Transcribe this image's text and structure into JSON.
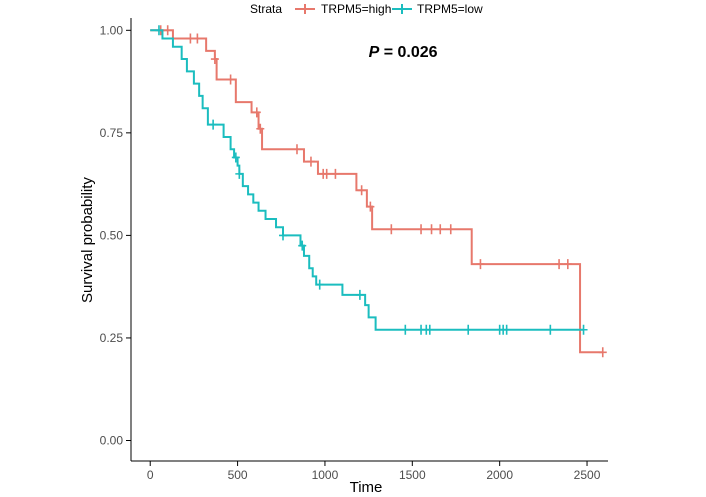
{
  "chart_data": {
    "type": "line",
    "title": "",
    "xlabel": "Time",
    "ylabel": "Survival probability",
    "xlim": [
      -110,
      2620
    ],
    "ylim": [
      -0.05,
      1.03
    ],
    "xticks": [
      0,
      500,
      1000,
      1500,
      2000,
      2500
    ],
    "yticks": [
      0.0,
      0.25,
      0.5,
      0.75,
      1.0
    ],
    "xtick_labels": [
      "0",
      "500",
      "1000",
      "1500",
      "2000",
      "2500"
    ],
    "ytick_labels": [
      "0.00",
      "0.25",
      "0.50",
      "0.75",
      "1.00"
    ],
    "grid": false,
    "legend": {
      "title": "Strata",
      "position": "top"
    },
    "annotation": {
      "text_prefix": "P",
      "text_value": " = 0.026",
      "x": 1250,
      "y": 0.935
    },
    "series": [
      {
        "name": "TRPM5=high",
        "color": "#E7786C",
        "steps": [
          [
            0,
            1.0
          ],
          [
            130,
            0.98
          ],
          [
            320,
            0.95
          ],
          [
            370,
            0.93
          ],
          [
            380,
            0.88
          ],
          [
            470,
            0.88
          ],
          [
            490,
            0.825
          ],
          [
            560,
            0.825
          ],
          [
            580,
            0.8
          ],
          [
            620,
            0.76
          ],
          [
            640,
            0.71
          ],
          [
            870,
            0.71
          ],
          [
            880,
            0.68
          ],
          [
            950,
            0.68
          ],
          [
            960,
            0.65
          ],
          [
            1170,
            0.65
          ],
          [
            1180,
            0.61
          ],
          [
            1230,
            0.61
          ],
          [
            1240,
            0.57
          ],
          [
            1260,
            0.57
          ],
          [
            1270,
            0.515
          ],
          [
            1830,
            0.515
          ],
          [
            1840,
            0.43
          ],
          [
            2450,
            0.43
          ],
          [
            2460,
            0.215
          ],
          [
            2590,
            0.215
          ]
        ],
        "censored": [
          [
            60,
            1.0
          ],
          [
            100,
            1.0
          ],
          [
            230,
            0.98
          ],
          [
            270,
            0.98
          ],
          [
            370,
            0.93
          ],
          [
            460,
            0.88
          ],
          [
            610,
            0.8
          ],
          [
            630,
            0.76
          ],
          [
            840,
            0.71
          ],
          [
            920,
            0.68
          ],
          [
            990,
            0.65
          ],
          [
            1010,
            0.65
          ],
          [
            1060,
            0.65
          ],
          [
            1210,
            0.61
          ],
          [
            1260,
            0.57
          ],
          [
            1380,
            0.515
          ],
          [
            1550,
            0.515
          ],
          [
            1610,
            0.515
          ],
          [
            1660,
            0.515
          ],
          [
            1720,
            0.515
          ],
          [
            1890,
            0.43
          ],
          [
            2340,
            0.43
          ],
          [
            2390,
            0.43
          ],
          [
            2590,
            0.215
          ]
        ]
      },
      {
        "name": "TRPM5=low",
        "color": "#1BBDBF",
        "steps": [
          [
            0,
            1.0
          ],
          [
            70,
            0.98
          ],
          [
            130,
            0.96
          ],
          [
            180,
            0.93
          ],
          [
            210,
            0.9
          ],
          [
            250,
            0.87
          ],
          [
            280,
            0.84
          ],
          [
            300,
            0.81
          ],
          [
            330,
            0.77
          ],
          [
            420,
            0.74
          ],
          [
            460,
            0.71
          ],
          [
            480,
            0.69
          ],
          [
            500,
            0.67
          ],
          [
            510,
            0.65
          ],
          [
            530,
            0.62
          ],
          [
            560,
            0.6
          ],
          [
            590,
            0.58
          ],
          [
            620,
            0.56
          ],
          [
            660,
            0.54
          ],
          [
            720,
            0.52
          ],
          [
            760,
            0.5
          ],
          [
            860,
            0.475
          ],
          [
            880,
            0.45
          ],
          [
            910,
            0.42
          ],
          [
            930,
            0.4
          ],
          [
            950,
            0.38
          ],
          [
            1100,
            0.355
          ],
          [
            1230,
            0.33
          ],
          [
            1250,
            0.3
          ],
          [
            1290,
            0.27
          ],
          [
            2480,
            0.27
          ]
        ],
        "censored": [
          [
            50,
            1.0
          ],
          [
            360,
            0.77
          ],
          [
            490,
            0.69
          ],
          [
            510,
            0.65
          ],
          [
            760,
            0.5
          ],
          [
            870,
            0.475
          ],
          [
            970,
            0.38
          ],
          [
            1200,
            0.355
          ],
          [
            1460,
            0.27
          ],
          [
            1550,
            0.27
          ],
          [
            1580,
            0.27
          ],
          [
            1600,
            0.27
          ],
          [
            1820,
            0.27
          ],
          [
            2000,
            0.27
          ],
          [
            2020,
            0.27
          ],
          [
            2040,
            0.27
          ],
          [
            2290,
            0.27
          ],
          [
            2480,
            0.27
          ]
        ]
      }
    ]
  }
}
